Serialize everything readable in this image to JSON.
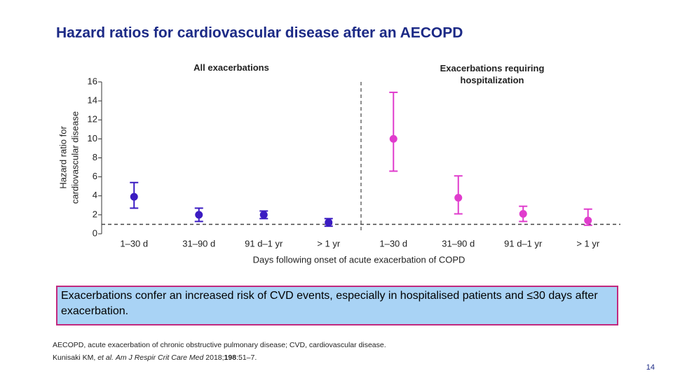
{
  "title": "Hazard ratios for cardiovascular disease after an AECOPD",
  "chart_data": {
    "type": "errorpoint",
    "ylabel": [
      "Hazard ratio for",
      "cardiovascular disease"
    ],
    "xlabel": "Days following onset of acute exacerbation of COPD",
    "ylim": [
      0,
      16
    ],
    "yticks": [
      0,
      2,
      4,
      6,
      8,
      10,
      12,
      14,
      16
    ],
    "reference_line": 1,
    "groups": [
      {
        "title": "All exacerbations",
        "color": "#3b1cc2",
        "categories": [
          "1–30 d",
          "31–90 d",
          "91 d–1 yr",
          "> 1 yr"
        ],
        "values": [
          3.9,
          2.0,
          2.0,
          1.2
        ],
        "lower": [
          2.7,
          1.3,
          1.6,
          0.8
        ],
        "upper": [
          5.4,
          2.7,
          2.4,
          1.6
        ]
      },
      {
        "title": "Exacerbations requiring hospitalization",
        "color": "#e03ccd",
        "categories": [
          "1–30 d",
          "31–90 d",
          "91 d–1 yr",
          "> 1 yr"
        ],
        "values": [
          10.0,
          3.8,
          2.1,
          1.4
        ],
        "lower": [
          6.6,
          2.1,
          1.3,
          0.9
        ],
        "upper": [
          14.9,
          6.1,
          2.9,
          2.6
        ]
      }
    ]
  },
  "callout": "Exacerbations confer an increased risk of CVD events, especially in hospitalised patients and ≤30 days after exacerbation.",
  "footnote": "AECOPD, acute exacerbation of chronic obstructive pulmonary disease; CVD, cardiovascular disease.",
  "reference": [
    {
      "text": "Kunisaki KM, ",
      "style": "normal"
    },
    {
      "text": "et al.",
      "style": "italic"
    },
    {
      "text": " ",
      "style": "normal"
    },
    {
      "text": "Am J Respir Crit Care Med",
      "style": "italic"
    },
    {
      "text": " 2018;",
      "style": "normal"
    },
    {
      "text": "198",
      "style": "bold"
    },
    {
      "text": ":51–7.",
      "style": "normal"
    }
  ],
  "page_number": "14"
}
